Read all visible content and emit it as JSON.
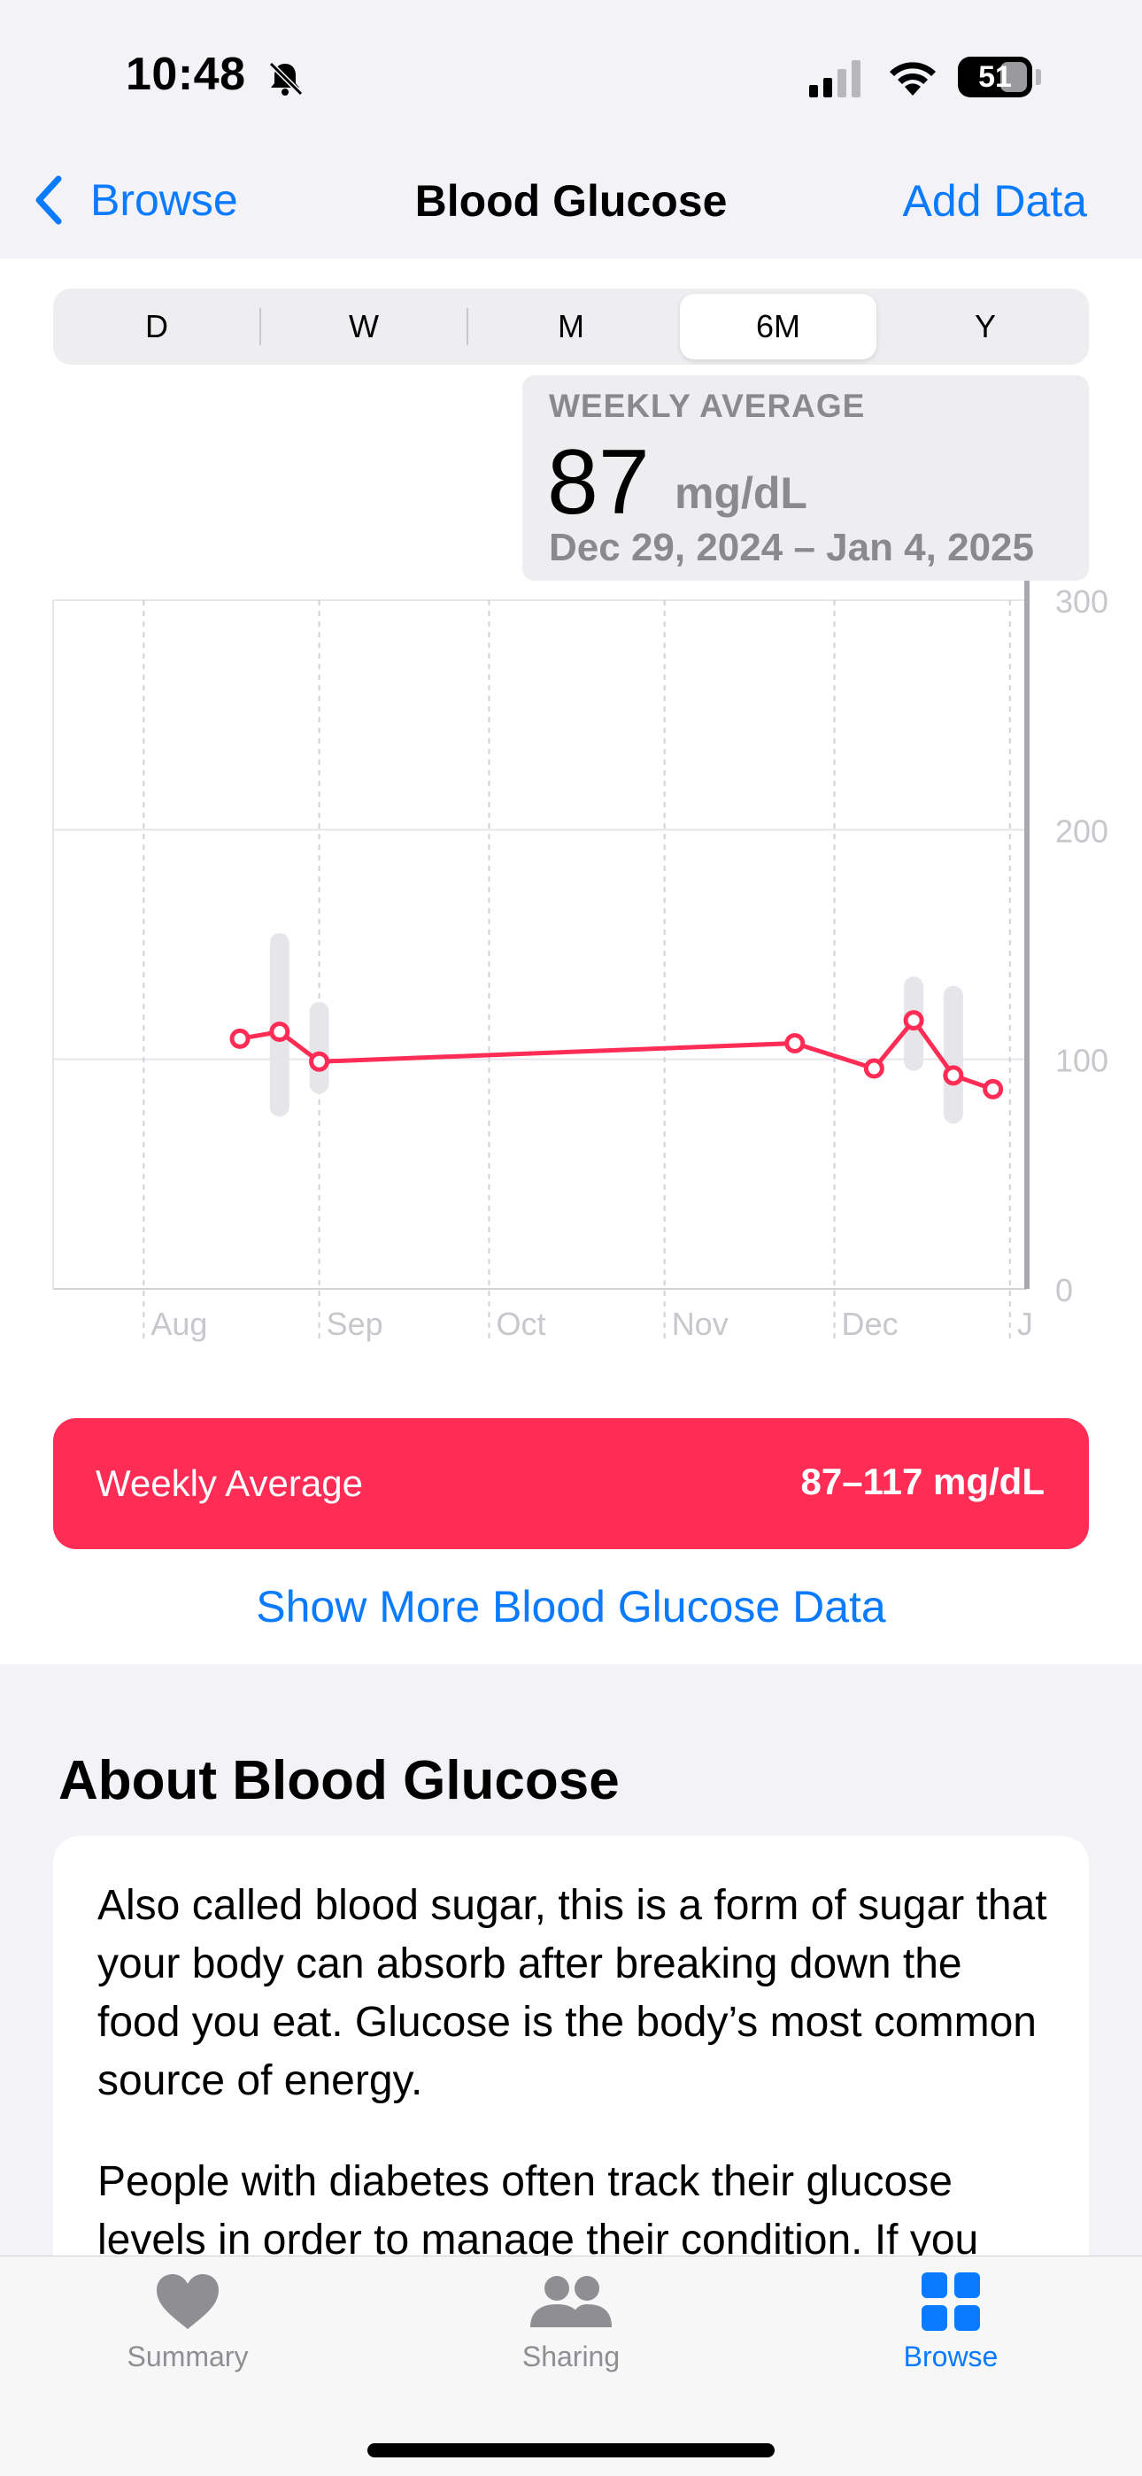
{
  "status_bar": {
    "time": "10:48",
    "battery": "51"
  },
  "nav": {
    "back_label": "Browse",
    "title": "Blood Glucose",
    "action_label": "Add Data"
  },
  "segments": {
    "items": [
      "D",
      "W",
      "M",
      "6M",
      "Y"
    ],
    "selected": "6M"
  },
  "callout": {
    "label": "WEEKLY AVERAGE",
    "value": "87",
    "unit": "mg/dL",
    "range": "Dec 29, 2024 – Jan 4, 2025"
  },
  "chart_data": {
    "type": "line",
    "y_ticks": [
      "300",
      "200",
      "100",
      "0"
    ],
    "ylim": [
      0,
      300
    ],
    "x_tick_labels": [
      "Aug",
      "Sep",
      "Oct",
      "Nov",
      "Dec",
      "J"
    ],
    "series": [
      {
        "x": [
          "2024-08-18",
          "2024-08-25",
          "2024-09-01",
          "2024-11-24",
          "2024-12-08",
          "2024-12-15",
          "2024-12-22",
          "2024-12-29"
        ],
        "values": [
          109,
          112,
          99,
          107,
          96,
          117,
          93,
          87
        ]
      }
    ],
    "range_bars": [
      {
        "x": "2024-08-25",
        "low": 75,
        "high": 155
      },
      {
        "x": "2024-09-01",
        "low": 85,
        "high": 125
      },
      {
        "x": "2024-12-15",
        "low": 95,
        "high": 136
      },
      {
        "x": "2024-12-22",
        "low": 72,
        "high": 132
      }
    ],
    "colors": {
      "line": "#ff2d55",
      "range": "#e5e5ea",
      "grid": "#e5e5ea",
      "axis_text": "#c7c7cc"
    },
    "grid": true
  },
  "summary": {
    "label": "Weekly Average",
    "value": "87–117 mg/dL"
  },
  "show_more": "Show More Blood Glucose Data",
  "about": {
    "title": "About Blood Glucose",
    "paragraph1": "Also called blood sugar, this is a form of sugar that your body can absorb after breaking down the food you eat. Glucose is the body’s most common source of energy.",
    "paragraph2": "People with diabetes often track their glucose levels in order to manage their condition. If you"
  },
  "tabbar": {
    "items": [
      {
        "label": "Summary",
        "icon": "heart-icon",
        "active": false
      },
      {
        "label": "Sharing",
        "icon": "people-icon",
        "active": false
      },
      {
        "label": "Browse",
        "icon": "grid-icon",
        "active": true
      }
    ]
  }
}
